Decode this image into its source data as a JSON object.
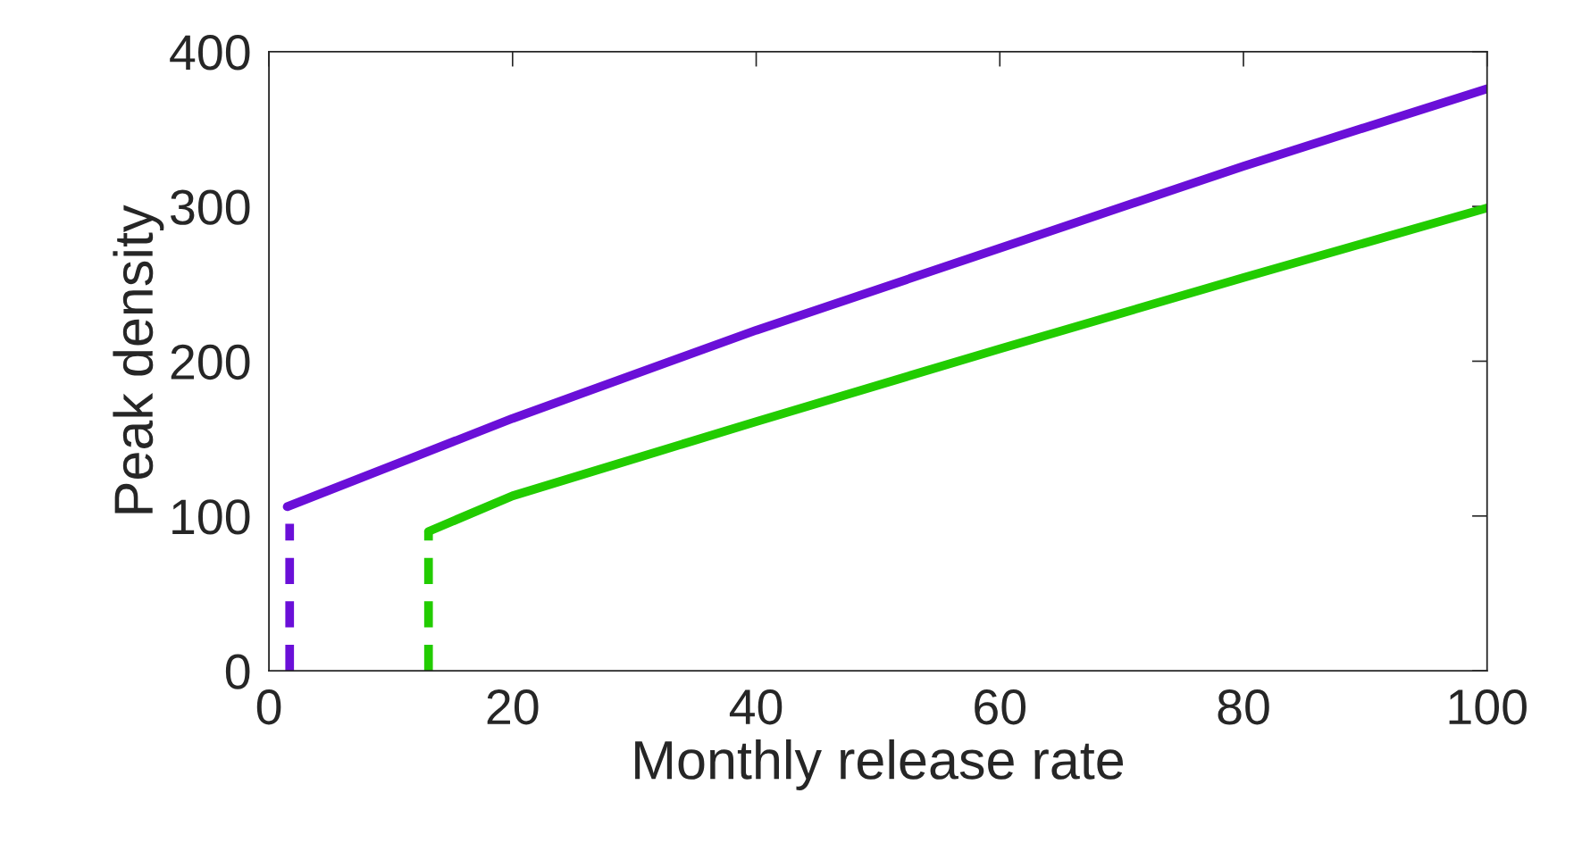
{
  "chart_data": {
    "type": "line",
    "xlabel": "Monthly release rate",
    "ylabel": "Peak density",
    "xlim": [
      0,
      100
    ],
    "ylim": [
      0,
      400
    ],
    "xticks": [
      0,
      20,
      40,
      60,
      80,
      100
    ],
    "yticks": [
      0,
      100,
      200,
      300,
      400
    ],
    "grid": false,
    "series": [
      {
        "color": "#6a0fd8",
        "line_style": "solid",
        "x": [
          1.5,
          20,
          40,
          60,
          80,
          100
        ],
        "values": [
          106,
          163,
          220,
          273,
          326,
          376
        ]
      },
      {
        "color": "#6a0fd8",
        "line_style": "dashed",
        "x": [
          1.7,
          1.7
        ],
        "values": [
          0,
          95
        ]
      },
      {
        "color": "#22cc00",
        "line_style": "solid",
        "x": [
          13.1,
          20,
          40,
          60,
          80,
          100
        ],
        "values": [
          90,
          113,
          161,
          208,
          254,
          299
        ]
      },
      {
        "color": "#22cc00",
        "line_style": "dashed",
        "x": [
          13.1,
          13.1
        ],
        "values": [
          0,
          90
        ]
      }
    ]
  }
}
